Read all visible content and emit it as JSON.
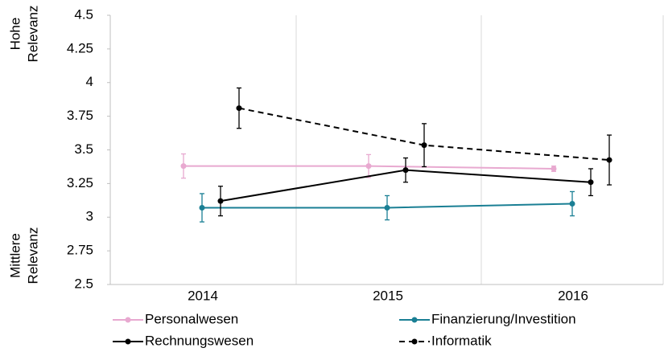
{
  "chart_data": {
    "type": "line",
    "categories": [
      "2014",
      "2015",
      "2016"
    ],
    "ylim": [
      2.5,
      4.5
    ],
    "yticks": [
      2.5,
      2.75,
      3,
      3.25,
      3.5,
      3.75,
      4,
      4.25,
      4.5
    ],
    "y_label_high": [
      "Hohe",
      "Relevanz"
    ],
    "y_label_low": [
      "Mittlere",
      "Relevanz"
    ],
    "series": [
      {
        "name": "Personalwesen",
        "color": "#e8a9d0",
        "dash": false,
        "values": [
          3.38,
          3.38,
          3.36
        ],
        "errors": [
          0.09,
          0.085,
          0.02
        ]
      },
      {
        "name": "Finanzierung/Investition",
        "color": "#1a7f94",
        "dash": false,
        "values": [
          3.07,
          3.07,
          3.1
        ],
        "errors": [
          0.105,
          0.09,
          0.09
        ]
      },
      {
        "name": "Rechnungswesen",
        "color": "#000000",
        "dash": false,
        "values": [
          3.12,
          3.35,
          3.26
        ],
        "errors": [
          0.11,
          0.09,
          0.1
        ]
      },
      {
        "name": "Informatik",
        "color": "#000000",
        "dash": true,
        "values": [
          3.81,
          3.535,
          3.425
        ],
        "errors": [
          0.15,
          0.16,
          0.185
        ]
      }
    ]
  }
}
